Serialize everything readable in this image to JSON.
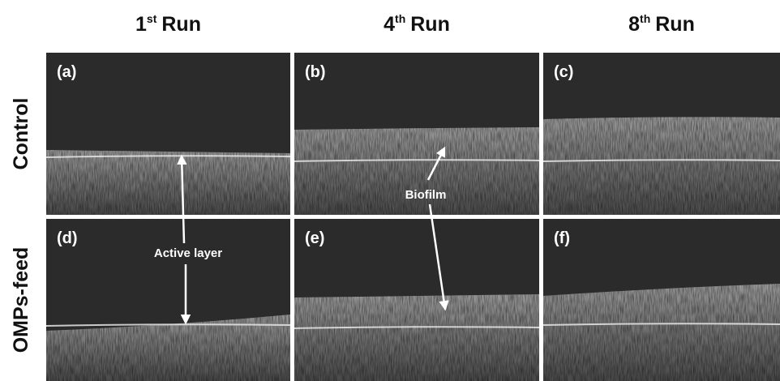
{
  "columns": [
    {
      "number": "1",
      "superscript": "st",
      "word": "Run"
    },
    {
      "number": "4",
      "superscript": "th",
      "word": "Run"
    },
    {
      "number": "8",
      "superscript": "th",
      "word": "Run"
    }
  ],
  "rows": [
    "Control",
    "OMPs-feed"
  ],
  "panels": [
    "(a)",
    "(b)",
    "(c)",
    "(d)",
    "(e)",
    "(f)"
  ],
  "annotations": {
    "active_layer": "Active layer",
    "biofilm": "Biofilm"
  }
}
